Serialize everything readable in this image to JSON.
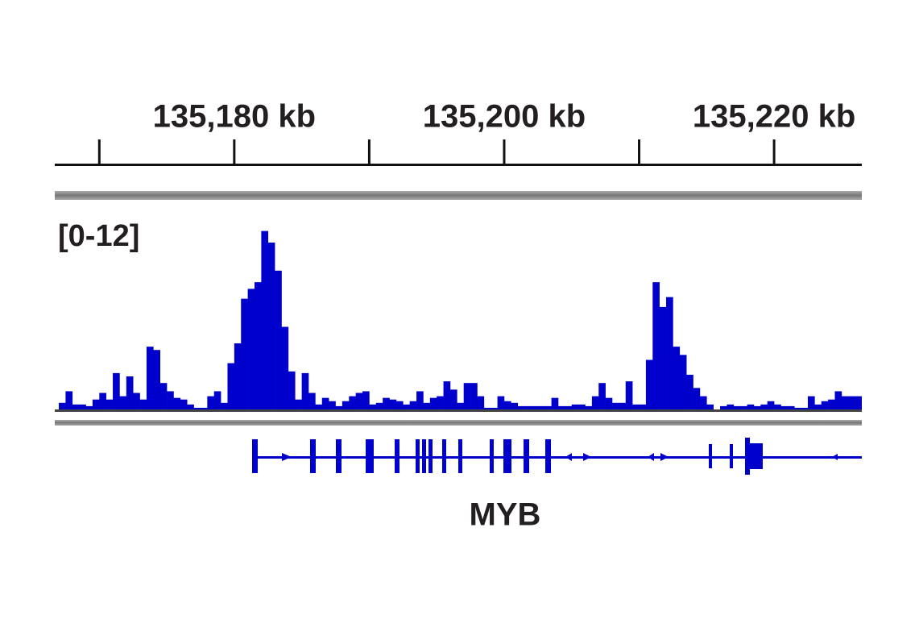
{
  "chart_data": {
    "type": "histogram",
    "data_range_label": "[0-12]",
    "gene_name": "MYB",
    "color": "#0000cc",
    "xlim": [
      135166.7,
      135226.5
    ],
    "xticks": [
      {
        "value": 135180,
        "label": "135,180 kb"
      },
      {
        "value": 135200,
        "label": "135,200 kb"
      },
      {
        "value": 135220,
        "label": "135,220 kb"
      }
    ],
    "xminor_ticks": [
      135170,
      135190,
      135210
    ],
    "ylim": [
      0,
      12
    ],
    "bins": [
      135167,
      135167.5,
      135168,
      135168.5,
      135169,
      135169.5,
      135170,
      135170.5,
      135171,
      135171.5,
      135172,
      135172.5,
      135173,
      135173.5,
      135174,
      135174.5,
      135175,
      135175.5,
      135176,
      135176.5,
      135177,
      135177.5,
      135178,
      135178.5,
      135179,
      135179.5,
      135180,
      135180.5,
      135181,
      135181.5,
      135182,
      135182.5,
      135183,
      135183.5,
      135184,
      135184.5,
      135185,
      135185.5,
      135186,
      135186.5,
      135187,
      135187.5,
      135188,
      135188.5,
      135189,
      135189.5,
      135190,
      135190.5,
      135191,
      135191.5,
      135192,
      135192.5,
      135193,
      135193.5,
      135194,
      135194.5,
      135195,
      135195.5,
      135196,
      135196.5,
      135197,
      135197.5,
      135198,
      135198.5,
      135199,
      135199.5,
      135200,
      135200.5,
      135201,
      135201.5,
      135202,
      135202.5,
      135203,
      135203.5,
      135204,
      135204.5,
      135205,
      135205.5,
      135206,
      135206.5,
      135207,
      135207.5,
      135208,
      135208.5,
      135209,
      135209.5,
      135210,
      135210.5,
      135211,
      135211.5,
      135212,
      135212.5,
      135213,
      135213.5,
      135214,
      135214.5,
      135215,
      135215.5,
      135216,
      135216.5,
      135217,
      135217.5,
      135218,
      135218.5,
      135219,
      135219.5,
      135220,
      135220.5,
      135221,
      135221.5,
      135222,
      135222.5,
      135223,
      135223.5,
      135224,
      135224.5,
      135225,
      135225.5,
      135226,
      135226.5
    ],
    "values": [
      0.4,
      1.1,
      0.3,
      0.3,
      0.2,
      0.6,
      1.0,
      0.6,
      2.2,
      0.8,
      2.0,
      1.0,
      0.6,
      3.8,
      3.6,
      1.6,
      1.1,
      0.7,
      0.6,
      0.3,
      0.1,
      0.1,
      0.8,
      1.1,
      0.4,
      2.8,
      4.0,
      6.7,
      7.3,
      7.7,
      10.8,
      10.1,
      8.4,
      5.0,
      2.3,
      0.6,
      2.2,
      1.0,
      0.3,
      0.7,
      0.5,
      0.2,
      0.5,
      0.8,
      1.0,
      1.1,
      0.3,
      0.4,
      0.7,
      0.6,
      0.5,
      0.3,
      0.5,
      1.1,
      0.4,
      0.7,
      0.8,
      1.7,
      1.2,
      0.4,
      1.6,
      1.6,
      0.8,
      0.1,
      0.1,
      0.8,
      0.5,
      0.4,
      0.2,
      0.2,
      0.2,
      0.2,
      0.2,
      0.7,
      0.2,
      0.2,
      0.3,
      0.3,
      0.2,
      0.8,
      1.6,
      0.7,
      0.4,
      0.4,
      1.7,
      0.3,
      0.3,
      3.0,
      7.7,
      6.2,
      6.8,
      3.8,
      3.3,
      2.1,
      1.3,
      0.8,
      0.3,
      0,
      0.2,
      0.3,
      0.2,
      0.2,
      0.3,
      0.2,
      0.3,
      0.5,
      0.3,
      0.2,
      0.2,
      0.1,
      0.1,
      0.8,
      0.3,
      0.5,
      0.6,
      1.1,
      0.8,
      0.8,
      0.8
    ]
  }
}
